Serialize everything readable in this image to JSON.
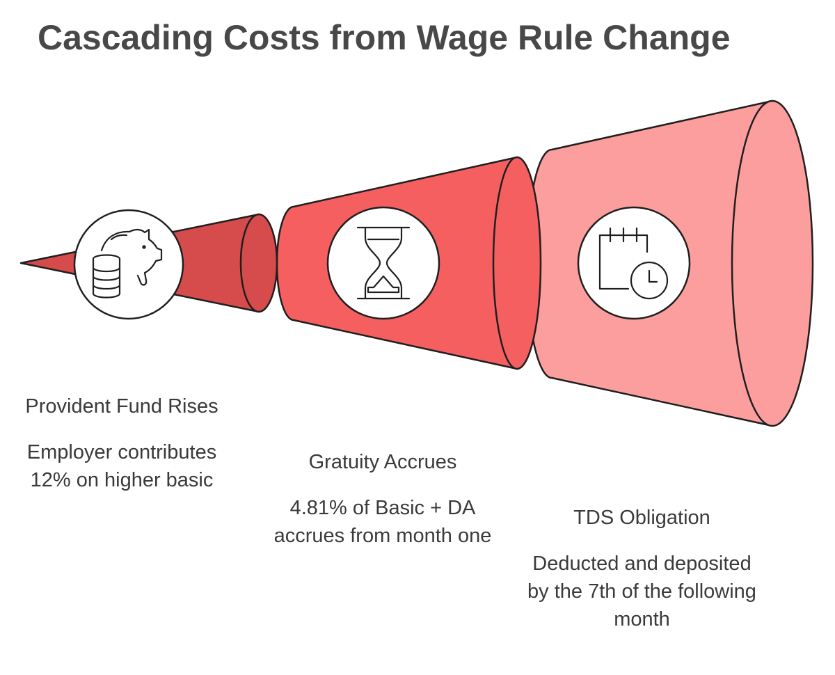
{
  "title": "Cascading Costs from Wage Rule Change",
  "colors": {
    "stage_1": "#d64b4b",
    "stage_2": "#f55f5f",
    "stage_3": "#fd9e9e",
    "outline": "#1f1f1f"
  },
  "stages": [
    {
      "label": "Provident Fund Rises",
      "description": "Employer contributes 12% on higher basic",
      "icon": "piggy-bank-coins-icon"
    },
    {
      "label": "Gratuity Accrues",
      "description": "4.81% of Basic + DA accrues from month one",
      "icon": "hourglass-icon"
    },
    {
      "label": "TDS Obligation",
      "description": "Deducted and deposited by the 7th of the following month",
      "icon": "calendar-clock-icon"
    }
  ]
}
